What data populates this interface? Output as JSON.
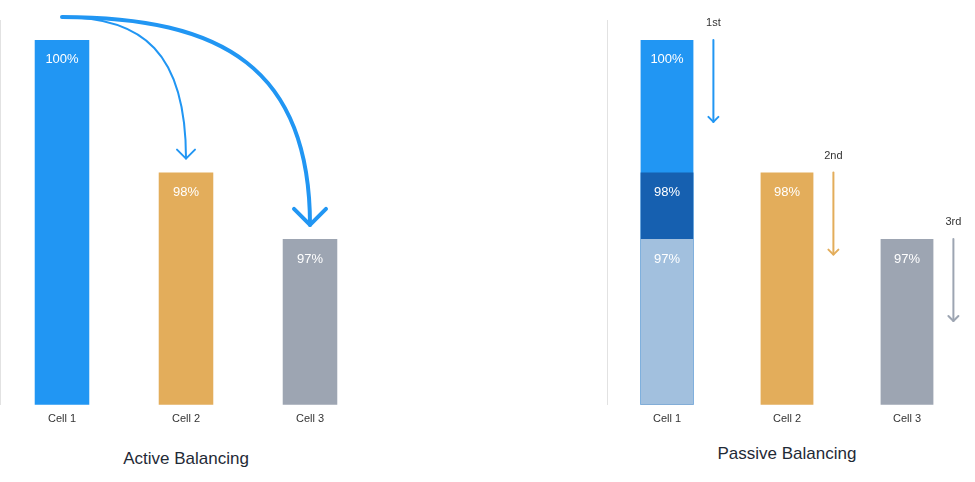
{
  "chart_data": [
    {
      "type": "bar",
      "title": "Active Balancing",
      "categories": [
        "Cell 1",
        "Cell 2",
        "Cell 3"
      ],
      "values": [
        100,
        98,
        97
      ],
      "value_labels": [
        "100%",
        "98%",
        "97%"
      ],
      "colors": [
        "#2196f3",
        "#e3ad5b",
        "#9da5b2"
      ],
      "ylim": [
        94.5,
        100.3
      ],
      "grid": false,
      "tick_labels": "x",
      "data_labels": true
    },
    {
      "type": "bar",
      "title": "Passive Balancing",
      "categories": [
        "Cell 1",
        "Cell 2",
        "Cell 3"
      ],
      "series": [
        {
          "values": [
            100,
            98,
            97
          ],
          "value_labels": [
            "100%",
            "98%",
            "97%"
          ],
          "colors": [
            "#2196f3",
            "#e3ad5b",
            "#9da5b2"
          ]
        },
        {
          "values": [
            98,
            null,
            null
          ],
          "value_labels": [
            "98%",
            null,
            null
          ],
          "color": "#1660b0"
        },
        {
          "values": [
            97,
            null,
            null
          ],
          "value_labels": [
            "97%",
            null,
            null
          ],
          "color": "#a2c0de"
        }
      ],
      "annotations": [
        {
          "category": "Cell 1",
          "text": "1st"
        },
        {
          "category": "Cell 2",
          "text": "2nd"
        },
        {
          "category": "Cell 3",
          "text": "3rd"
        }
      ],
      "ylim": [
        94.5,
        100.3
      ],
      "grid": false,
      "tick_labels": "x",
      "data_labels": true
    }
  ]
}
